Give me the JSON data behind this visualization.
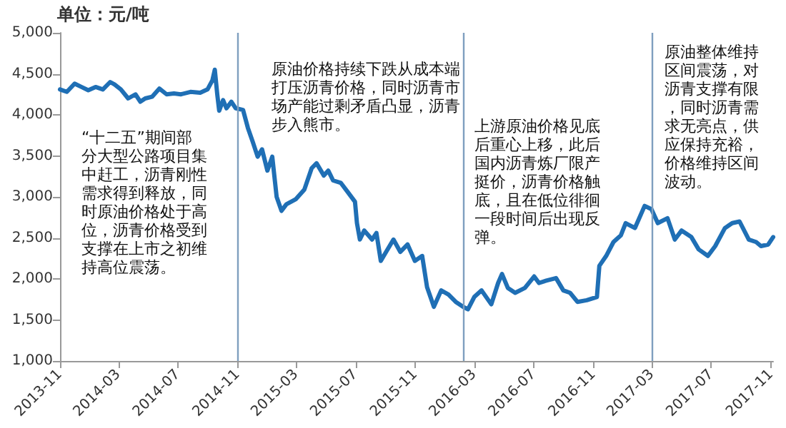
{
  "chart_data": {
    "type": "line",
    "ylabel": "单位：元/吨",
    "x": [
      "2013-11-01",
      "2013-11-15",
      "2013-12-01",
      "2013-12-15",
      "2013-12-29",
      "2014-01-13",
      "2014-01-28",
      "2014-02-12",
      "2014-02-21",
      "2014-03-06",
      "2014-03-21",
      "2014-04-05",
      "2014-04-15",
      "2014-04-25",
      "2014-05-09",
      "2014-05-24",
      "2014-06-08",
      "2014-06-23",
      "2014-07-07",
      "2014-07-27",
      "2014-08-16",
      "2014-08-31",
      "2014-09-10",
      "2014-09-15",
      "2014-09-20",
      "2014-09-24",
      "2014-10-02",
      "2014-10-09",
      "2014-10-19",
      "2014-10-28",
      "2014-11-12",
      "2014-11-22",
      "2014-12-02",
      "2014-12-12",
      "2014-12-21",
      "2015-01-01",
      "2015-01-11",
      "2015-01-20",
      "2015-01-30",
      "2015-02-09",
      "2015-02-28",
      "2015-03-18",
      "2015-04-02",
      "2015-04-12",
      "2015-04-27",
      "2015-05-06",
      "2015-05-16",
      "2015-06-01",
      "2015-06-15",
      "2015-06-30",
      "2015-07-04",
      "2015-07-10",
      "2015-07-19",
      "2015-08-04",
      "2015-08-13",
      "2015-08-22",
      "2015-09-02",
      "2015-09-17",
      "2015-10-01",
      "2015-10-16",
      "2015-10-31",
      "2015-11-15",
      "2015-11-25",
      "2015-12-09",
      "2015-12-24",
      "2016-01-08",
      "2016-01-23",
      "2016-02-07",
      "2016-02-17",
      "2016-03-01",
      "2016-03-16",
      "2016-04-05",
      "2016-04-19",
      "2016-04-27",
      "2016-05-09",
      "2016-05-24",
      "2016-06-13",
      "2016-07-02",
      "2016-07-12",
      "2016-07-27",
      "2016-08-16",
      "2016-08-31",
      "2016-09-14",
      "2016-09-29",
      "2016-10-18",
      "2016-11-08",
      "2016-11-13",
      "2016-11-27",
      "2016-12-12",
      "2016-12-27",
      "2017-01-06",
      "2017-01-25",
      "2017-02-14",
      "2017-02-28",
      "2017-03-13",
      "2017-04-02",
      "2017-04-17",
      "2017-05-01",
      "2017-05-21",
      "2017-06-05",
      "2017-06-24",
      "2017-07-09",
      "2017-07-29",
      "2017-08-13",
      "2017-08-28",
      "2017-09-16",
      "2017-10-01",
      "2017-10-11",
      "2017-10-26",
      "2017-11-05"
    ],
    "series": [
      {
        "color": "#1f6fb5",
        "values": [
          4310,
          4280,
          4380,
          4340,
          4300,
          4340,
          4310,
          4400,
          4370,
          4310,
          4200,
          4250,
          4160,
          4200,
          4220,
          4320,
          4250,
          4260,
          4250,
          4280,
          4270,
          4310,
          4420,
          4550,
          4250,
          4050,
          4180,
          4080,
          4160,
          4080,
          4060,
          3840,
          3670,
          3490,
          3580,
          3320,
          3490,
          3000,
          2830,
          2910,
          2970,
          3090,
          3350,
          3410,
          3260,
          3320,
          3200,
          3170,
          3060,
          2940,
          2680,
          2480,
          2590,
          2480,
          2560,
          2220,
          2330,
          2480,
          2330,
          2420,
          2220,
          2280,
          1900,
          1660,
          1860,
          1810,
          1720,
          1660,
          1630,
          1780,
          1860,
          1690,
          1950,
          2060,
          1890,
          1830,
          1890,
          2030,
          1950,
          1980,
          2010,
          1860,
          1830,
          1720,
          1740,
          1780,
          2160,
          2280,
          2450,
          2530,
          2680,
          2620,
          2890,
          2850,
          2680,
          2740,
          2480,
          2590,
          2510,
          2360,
          2280,
          2400,
          2620,
          2680,
          2700,
          2480,
          2450,
          2400,
          2420,
          2510
        ]
      }
    ],
    "xlim": [
      "2013-11-01",
      "2017-11-05"
    ],
    "xticks": [
      "2013-11",
      "2014-03",
      "2014-07",
      "2014-11",
      "2015-03",
      "2015-07",
      "2015-11",
      "2016-03",
      "2016-07",
      "2016-11",
      "2017-03",
      "2017-07",
      "2017-11"
    ],
    "ylim": [
      1000,
      5000
    ],
    "yticks": [
      {
        "value": 1000,
        "label": "1,000"
      },
      {
        "value": 1500,
        "label": "1,500"
      },
      {
        "value": 2000,
        "label": "2,000"
      },
      {
        "value": 2500,
        "label": "2,500"
      },
      {
        "value": 3000,
        "label": "3,000"
      },
      {
        "value": 3500,
        "label": "3,500"
      },
      {
        "value": 4000,
        "label": "4,000"
      },
      {
        "value": 4500,
        "label": "4,500"
      },
      {
        "value": 5000,
        "label": "5,000"
      }
    ],
    "ref_lines": [
      {
        "axis": "x",
        "value": "2014-11-01",
        "color": "#7f9fbf"
      },
      {
        "axis": "x",
        "value": "2016-02-09",
        "color": "#7f9fbf"
      },
      {
        "axis": "x",
        "value": "2017-03-01",
        "color": "#7f9fbf"
      }
    ],
    "annotations": [
      "“十二五”期间部分大型公路项目集中赶工，沥青刚性需求得到释放，同时原油价格处于高位，沥青价格受到支撑在上市之初维持高位震荡。",
      "原油价格持续下跌从成本端打压沥青价格，同时沥青市场产能过剩矛盾凸显，沥青步入熊市。",
      "上游原油价格见底后重心上移，此后国内沥青炼厂限产挺价，沥青价格触底，且在低位徘徊一段时间后出现反弹。",
      "原油整体维持区间震荡，对沥青支撑有限，同时沥青需求无亮点，供应保持充裕，价格维持区间波动。"
    ],
    "grid": false,
    "marker": "none",
    "line_style": "solid"
  }
}
